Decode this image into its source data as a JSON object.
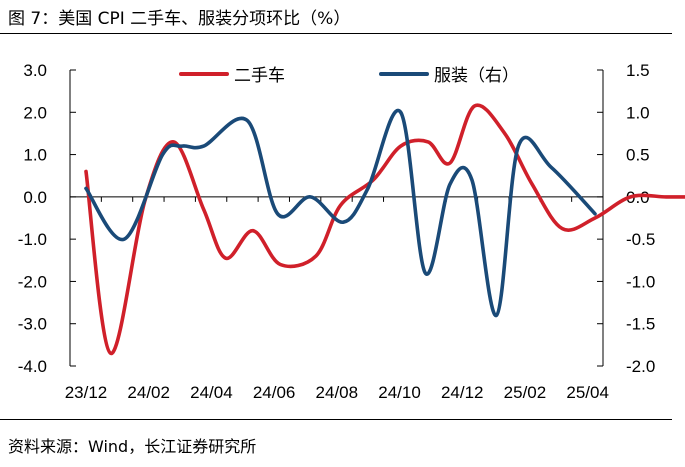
{
  "title": "图 7：美国 CPI 二手车、服装分项环比（%）",
  "source": "资料来源：Wind，长江证券研究所",
  "colors": {
    "used_cars": "#d0202a",
    "apparel": "#1a4a78",
    "axis": "#000000"
  },
  "chart_data": {
    "type": "line",
    "title": "美国 CPI 二手车、服装分项环比（%）",
    "x_tick_labels": [
      "23/12",
      "24/02",
      "24/04",
      "24/06",
      "24/08",
      "24/10",
      "24/12",
      "25/02",
      "25/04"
    ],
    "y_left": {
      "min": -4.0,
      "max": 3.0,
      "step": 1.0,
      "tick_labels": [
        "3.0",
        "2.0",
        "1.0",
        "0.0",
        "-1.0",
        "-2.0",
        "-3.0",
        "-4.0"
      ]
    },
    "y_right": {
      "min": -2.0,
      "max": 1.5,
      "step": 0.5,
      "tick_labels": [
        "1.5",
        "1.0",
        "0.5",
        "0.0",
        "-0.5",
        "-1.0",
        "-1.5",
        "-2.0"
      ]
    },
    "legend_position": "top",
    "series": [
      {
        "name": "二手车",
        "axis": "left",
        "color": "#d0202a",
        "x": [
          0,
          0.9,
          2.15,
          3.2,
          4.3,
          5.1,
          6.1,
          7.1,
          8.4,
          9.3,
          10.5,
          11.5,
          12.5,
          13.3,
          14.2,
          15.3,
          16.3,
          17.4,
          18.6,
          19.9,
          21.2,
          22.3,
          23.3
        ],
        "values": [
          0.6,
          -3.7,
          -0.1,
          1.3,
          -0.3,
          -1.45,
          -0.8,
          -1.6,
          -1.4,
          -0.2,
          0.4,
          1.2,
          1.3,
          0.8,
          2.15,
          1.5,
          0.3,
          -0.75,
          -0.5,
          0,
          0,
          0,
          0
        ]
      },
      {
        "name": "服装（右）",
        "axis": "right",
        "color": "#1a4a78",
        "x": [
          0,
          1.4,
          2.8,
          3.5,
          4.3,
          5.9,
          7.0,
          8.2,
          9.4,
          10.3,
          11.5,
          12.4,
          13.3,
          14.1,
          15.0,
          15.8,
          17.0,
          18.6
        ],
        "values": [
          0.1,
          -0.5,
          0.5,
          0.6,
          0.6,
          0.9,
          -0.2,
          0,
          -0.3,
          0.1,
          1.0,
          -0.9,
          0.15,
          0.2,
          -1.4,
          0.6,
          0.35,
          -0.2
        ]
      }
    ]
  }
}
